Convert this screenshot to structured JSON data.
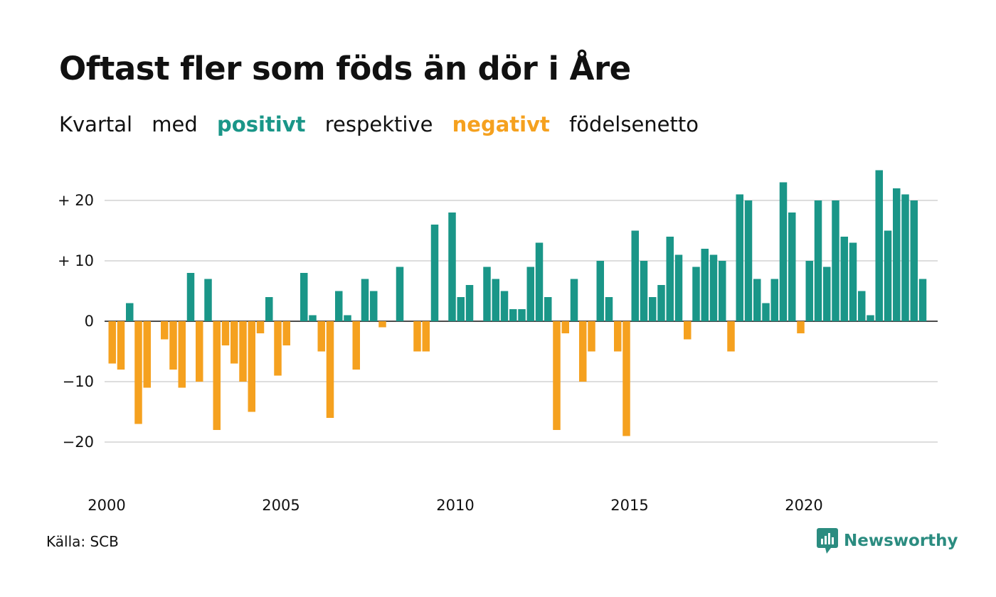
{
  "title": "Oftast fler som föds än dör i Åre",
  "subtitle": {
    "part1": "Kvartal",
    "part2": "med",
    "positive": "positivt",
    "part3": "respektive",
    "negative": "negativt",
    "part4": "födelsenetto"
  },
  "source": "Källa: SCB",
  "brand": {
    "name": "Newsworthy",
    "logo_icon": "newsworthy-chart-bubble-icon"
  },
  "colors": {
    "positive": "#1a9688",
    "negative": "#f5a11f",
    "grid": "#dddddd",
    "baseline": "#111111"
  },
  "chart_data": {
    "type": "bar",
    "xlabel": "",
    "ylabel": "",
    "x_start": "2000 Q1",
    "x_ticks": [
      "2000",
      "2005",
      "2010",
      "2015",
      "2020"
    ],
    "y_ticks": [
      {
        "value": 20,
        "label": "+ 20"
      },
      {
        "value": 10,
        "label": "+ 10"
      },
      {
        "value": 0,
        "label": "0"
      },
      {
        "value": -10,
        "label": "−10"
      },
      {
        "value": -20,
        "label": "−20"
      }
    ],
    "ylim": [
      -25,
      25
    ],
    "grid": true,
    "values": [
      -7,
      -8,
      3,
      -17,
      -11,
      0,
      -3,
      -8,
      -11,
      8,
      -10,
      7,
      -18,
      -4,
      -7,
      -10,
      -15,
      -2,
      4,
      -9,
      -4,
      0,
      8,
      1,
      -5,
      -16,
      5,
      1,
      -8,
      7,
      5,
      -1,
      0,
      9,
      0,
      -5,
      -5,
      16,
      0,
      18,
      4,
      6,
      0,
      9,
      7,
      5,
      2,
      2,
      9,
      13,
      4,
      -18,
      -2,
      7,
      -10,
      -5,
      10,
      4,
      -5,
      -19,
      15,
      10,
      4,
      6,
      14,
      11,
      -3,
      9,
      12,
      11,
      10,
      -5,
      21,
      20,
      7,
      3,
      7,
      23,
      18,
      -2,
      10,
      20,
      9,
      20,
      14,
      13,
      5,
      1,
      25,
      15,
      22,
      21,
      20,
      7
    ]
  }
}
